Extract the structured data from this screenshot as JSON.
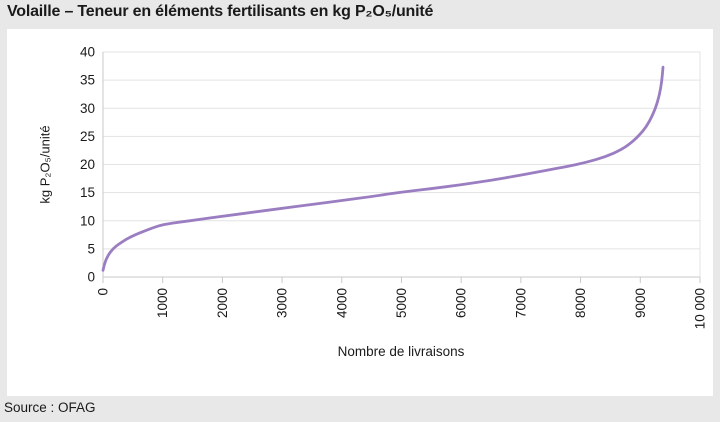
{
  "page": {
    "background_color": "#e8e8e8",
    "panel_color": "#ffffff",
    "text_color": "#1a1a1a"
  },
  "header": {
    "title": "Volaille – Teneur en éléments fertilisants en kg P₂O₅/unité"
  },
  "footer": {
    "source": "Source : OFAG"
  },
  "chart_data": {
    "type": "line",
    "title": "Volaille – Teneur en éléments fertilisants en kg P₂O₅/unité",
    "xlabel": "Nombre de livraisons",
    "ylabel": "kg P₂O₅/unité",
    "xlim": [
      0,
      10000
    ],
    "ylim": [
      0,
      40
    ],
    "x_ticks": [
      0,
      1000,
      2000,
      3000,
      4000,
      5000,
      6000,
      7000,
      8000,
      9000,
      10000
    ],
    "x_tick_labels": [
      "0",
      "1000",
      "2000",
      "3000",
      "4000",
      "5000",
      "6000",
      "7000",
      "8000",
      "9000",
      "10 000"
    ],
    "y_ticks": [
      0,
      5,
      10,
      15,
      20,
      25,
      30,
      35,
      40
    ],
    "y_tick_labels": [
      "0",
      "5",
      "10",
      "15",
      "20",
      "25",
      "30",
      "35",
      "40"
    ],
    "grid": "horizontal",
    "legend": "none",
    "line_color": "#9b7ec1",
    "grid_color": "#e3e3e3",
    "axis_color": "#c9c9c9",
    "series": [
      {
        "points": [
          [
            0,
            1.2
          ],
          [
            15,
            1.9
          ],
          [
            35,
            2.6
          ],
          [
            60,
            3.3
          ],
          [
            100,
            4.1
          ],
          [
            150,
            4.8
          ],
          [
            220,
            5.5
          ],
          [
            300,
            6.1
          ],
          [
            420,
            6.9
          ],
          [
            560,
            7.6
          ],
          [
            700,
            8.2
          ],
          [
            850,
            8.8
          ],
          [
            1000,
            9.3
          ],
          [
            1300,
            9.8
          ],
          [
            1600,
            10.2
          ],
          [
            2000,
            10.8
          ],
          [
            2500,
            11.5
          ],
          [
            3000,
            12.2
          ],
          [
            3500,
            12.9
          ],
          [
            4000,
            13.6
          ],
          [
            4500,
            14.3
          ],
          [
            5000,
            15.1
          ],
          [
            5500,
            15.7
          ],
          [
            6000,
            16.4
          ],
          [
            6500,
            17.2
          ],
          [
            7000,
            18.1
          ],
          [
            7400,
            18.9
          ],
          [
            7800,
            19.7
          ],
          [
            8100,
            20.4
          ],
          [
            8400,
            21.3
          ],
          [
            8700,
            22.7
          ],
          [
            8900,
            24.3
          ],
          [
            9050,
            26.0
          ],
          [
            9150,
            27.6
          ],
          [
            9250,
            29.8
          ],
          [
            9320,
            32.3
          ],
          [
            9360,
            34.8
          ],
          [
            9380,
            37.3
          ]
        ]
      }
    ]
  }
}
